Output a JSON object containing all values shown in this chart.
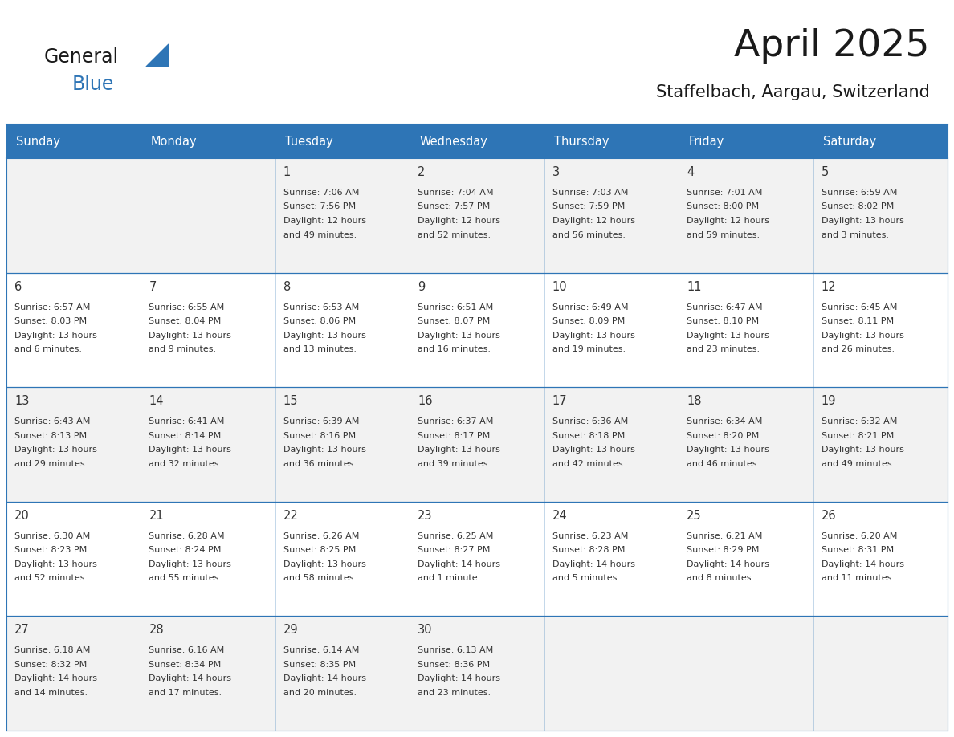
{
  "title": "April 2025",
  "subtitle": "Staffelbach, Aargau, Switzerland",
  "header_bg_color": "#2E75B6",
  "header_text_color": "#FFFFFF",
  "weekdays": [
    "Sunday",
    "Monday",
    "Tuesday",
    "Wednesday",
    "Thursday",
    "Friday",
    "Saturday"
  ],
  "row_bg": [
    "#F2F2F2",
    "#FFFFFF",
    "#F2F2F2",
    "#FFFFFF",
    "#F2F2F2"
  ],
  "cell_text_color": "#333333",
  "days": [
    {
      "day": null,
      "col": 0,
      "row": 0
    },
    {
      "day": null,
      "col": 1,
      "row": 0
    },
    {
      "day": 1,
      "col": 2,
      "row": 0,
      "sunrise": "7:06 AM",
      "sunset": "7:56 PM",
      "daylight": "12 hours",
      "daylight2": "and 49 minutes."
    },
    {
      "day": 2,
      "col": 3,
      "row": 0,
      "sunrise": "7:04 AM",
      "sunset": "7:57 PM",
      "daylight": "12 hours",
      "daylight2": "and 52 minutes."
    },
    {
      "day": 3,
      "col": 4,
      "row": 0,
      "sunrise": "7:03 AM",
      "sunset": "7:59 PM",
      "daylight": "12 hours",
      "daylight2": "and 56 minutes."
    },
    {
      "day": 4,
      "col": 5,
      "row": 0,
      "sunrise": "7:01 AM",
      "sunset": "8:00 PM",
      "daylight": "12 hours",
      "daylight2": "and 59 minutes."
    },
    {
      "day": 5,
      "col": 6,
      "row": 0,
      "sunrise": "6:59 AM",
      "sunset": "8:02 PM",
      "daylight": "13 hours",
      "daylight2": "and 3 minutes."
    },
    {
      "day": 6,
      "col": 0,
      "row": 1,
      "sunrise": "6:57 AM",
      "sunset": "8:03 PM",
      "daylight": "13 hours",
      "daylight2": "and 6 minutes."
    },
    {
      "day": 7,
      "col": 1,
      "row": 1,
      "sunrise": "6:55 AM",
      "sunset": "8:04 PM",
      "daylight": "13 hours",
      "daylight2": "and 9 minutes."
    },
    {
      "day": 8,
      "col": 2,
      "row": 1,
      "sunrise": "6:53 AM",
      "sunset": "8:06 PM",
      "daylight": "13 hours",
      "daylight2": "and 13 minutes."
    },
    {
      "day": 9,
      "col": 3,
      "row": 1,
      "sunrise": "6:51 AM",
      "sunset": "8:07 PM",
      "daylight": "13 hours",
      "daylight2": "and 16 minutes."
    },
    {
      "day": 10,
      "col": 4,
      "row": 1,
      "sunrise": "6:49 AM",
      "sunset": "8:09 PM",
      "daylight": "13 hours",
      "daylight2": "and 19 minutes."
    },
    {
      "day": 11,
      "col": 5,
      "row": 1,
      "sunrise": "6:47 AM",
      "sunset": "8:10 PM",
      "daylight": "13 hours",
      "daylight2": "and 23 minutes."
    },
    {
      "day": 12,
      "col": 6,
      "row": 1,
      "sunrise": "6:45 AM",
      "sunset": "8:11 PM",
      "daylight": "13 hours",
      "daylight2": "and 26 minutes."
    },
    {
      "day": 13,
      "col": 0,
      "row": 2,
      "sunrise": "6:43 AM",
      "sunset": "8:13 PM",
      "daylight": "13 hours",
      "daylight2": "and 29 minutes."
    },
    {
      "day": 14,
      "col": 1,
      "row": 2,
      "sunrise": "6:41 AM",
      "sunset": "8:14 PM",
      "daylight": "13 hours",
      "daylight2": "and 32 minutes."
    },
    {
      "day": 15,
      "col": 2,
      "row": 2,
      "sunrise": "6:39 AM",
      "sunset": "8:16 PM",
      "daylight": "13 hours",
      "daylight2": "and 36 minutes."
    },
    {
      "day": 16,
      "col": 3,
      "row": 2,
      "sunrise": "6:37 AM",
      "sunset": "8:17 PM",
      "daylight": "13 hours",
      "daylight2": "and 39 minutes."
    },
    {
      "day": 17,
      "col": 4,
      "row": 2,
      "sunrise": "6:36 AM",
      "sunset": "8:18 PM",
      "daylight": "13 hours",
      "daylight2": "and 42 minutes."
    },
    {
      "day": 18,
      "col": 5,
      "row": 2,
      "sunrise": "6:34 AM",
      "sunset": "8:20 PM",
      "daylight": "13 hours",
      "daylight2": "and 46 minutes."
    },
    {
      "day": 19,
      "col": 6,
      "row": 2,
      "sunrise": "6:32 AM",
      "sunset": "8:21 PM",
      "daylight": "13 hours",
      "daylight2": "and 49 minutes."
    },
    {
      "day": 20,
      "col": 0,
      "row": 3,
      "sunrise": "6:30 AM",
      "sunset": "8:23 PM",
      "daylight": "13 hours",
      "daylight2": "and 52 minutes."
    },
    {
      "day": 21,
      "col": 1,
      "row": 3,
      "sunrise": "6:28 AM",
      "sunset": "8:24 PM",
      "daylight": "13 hours",
      "daylight2": "and 55 minutes."
    },
    {
      "day": 22,
      "col": 2,
      "row": 3,
      "sunrise": "6:26 AM",
      "sunset": "8:25 PM",
      "daylight": "13 hours",
      "daylight2": "and 58 minutes."
    },
    {
      "day": 23,
      "col": 3,
      "row": 3,
      "sunrise": "6:25 AM",
      "sunset": "8:27 PM",
      "daylight": "14 hours",
      "daylight2": "and 1 minute."
    },
    {
      "day": 24,
      "col": 4,
      "row": 3,
      "sunrise": "6:23 AM",
      "sunset": "8:28 PM",
      "daylight": "14 hours",
      "daylight2": "and 5 minutes."
    },
    {
      "day": 25,
      "col": 5,
      "row": 3,
      "sunrise": "6:21 AM",
      "sunset": "8:29 PM",
      "daylight": "14 hours",
      "daylight2": "and 8 minutes."
    },
    {
      "day": 26,
      "col": 6,
      "row": 3,
      "sunrise": "6:20 AM",
      "sunset": "8:31 PM",
      "daylight": "14 hours",
      "daylight2": "and 11 minutes."
    },
    {
      "day": 27,
      "col": 0,
      "row": 4,
      "sunrise": "6:18 AM",
      "sunset": "8:32 PM",
      "daylight": "14 hours",
      "daylight2": "and 14 minutes."
    },
    {
      "day": 28,
      "col": 1,
      "row": 4,
      "sunrise": "6:16 AM",
      "sunset": "8:34 PM",
      "daylight": "14 hours",
      "daylight2": "and 17 minutes."
    },
    {
      "day": 29,
      "col": 2,
      "row": 4,
      "sunrise": "6:14 AM",
      "sunset": "8:35 PM",
      "daylight": "14 hours",
      "daylight2": "and 20 minutes."
    },
    {
      "day": 30,
      "col": 3,
      "row": 4,
      "sunrise": "6:13 AM",
      "sunset": "8:36 PM",
      "daylight": "14 hours",
      "daylight2": "and 23 minutes."
    },
    {
      "day": null,
      "col": 4,
      "row": 4
    },
    {
      "day": null,
      "col": 5,
      "row": 4
    },
    {
      "day": null,
      "col": 6,
      "row": 4
    }
  ],
  "logo_color_general": "#1a1a1a",
  "logo_color_blue": "#2E75B6",
  "logo_triangle_color": "#2E75B6",
  "line_color": "#2E75B6",
  "fig_width": 11.88,
  "fig_height": 9.18
}
